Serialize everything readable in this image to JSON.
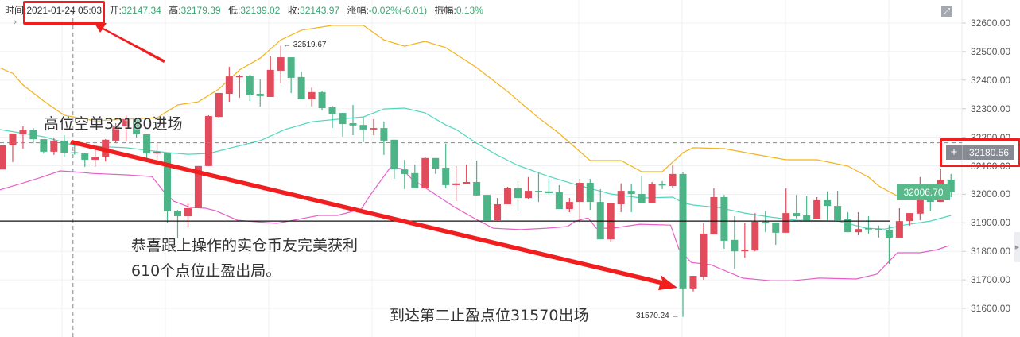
{
  "info_bar": {
    "time_label": "时间:",
    "time": "2021-01-24 05:03",
    "open_label": "开:",
    "open": "32147.34",
    "high_label": "高:",
    "high": "32179.39",
    "low_label": "低:",
    "low": "32139.02",
    "close_label": "收:",
    "close": "32143.97",
    "change_label": "涨幅:",
    "change": "-0.02%(-6.01)",
    "amplitude_label": "振幅:",
    "amplitude": "0.13%"
  },
  "annotations": {
    "entry": "高位空单32180进场",
    "profit_line1": "恭喜跟上操作的实仓币友完美获利",
    "profit_line2": "610个点位止盈出局。",
    "exit": "到达第二止盈点位31570出场"
  },
  "markers": {
    "high": "← 32519.67",
    "low": "31570.24 →"
  },
  "price_labels": {
    "crosshair": "32180.56",
    "last": "32006.70"
  },
  "colors": {
    "up": "#e24b5b",
    "down": "#4db487",
    "boll_upper": "#f5b21b",
    "boll_mid": "#4fd8be",
    "boll_lower": "#e85fc8",
    "highlight": "#f01e1e"
  },
  "icons": {
    "expand": "expand-icon",
    "chevron": "chevron-right-icon",
    "plus": "plus-icon"
  },
  "chart_data": {
    "type": "candlestick",
    "y_ticks": [
      "32600.00",
      "32500.00",
      "32400.00",
      "32300.00",
      "32200.00",
      "32100.00",
      "32000.00",
      "31900.00",
      "31800.00",
      "31700.00",
      "31600.00"
    ],
    "ylim": [
      31560,
      32600
    ],
    "grid": true,
    "candle_format": [
      "open",
      "high",
      "low",
      "close"
    ],
    "candles": [
      [
        32087,
        32171,
        32087,
        32171
      ],
      [
        32171,
        32213,
        32113,
        32213
      ],
      [
        32210,
        32238,
        32160,
        32224
      ],
      [
        32224,
        32232,
        32179,
        32193
      ],
      [
        32193,
        32193,
        32143,
        32149
      ],
      [
        32149,
        32199,
        32138,
        32188
      ],
      [
        32188,
        32207,
        32132,
        32146
      ],
      [
        32147.34,
        32179.39,
        32139.02,
        32143.97
      ],
      [
        32143,
        32146,
        32096,
        32121
      ],
      [
        32121,
        32160,
        32096,
        32132
      ],
      [
        32132,
        32193,
        32115,
        32191
      ],
      [
        32188,
        32249,
        32179,
        32238
      ],
      [
        32238,
        32277,
        32185,
        32263
      ],
      [
        32263,
        32263,
        32199,
        32210
      ],
      [
        32210,
        32210,
        32124,
        32143
      ],
      [
        32143,
        32179,
        32107,
        32149
      ],
      [
        32146,
        32146,
        31901,
        31940
      ],
      [
        31942,
        31945,
        31845,
        31923
      ],
      [
        31923,
        31968,
        31887,
        31951
      ],
      [
        31951,
        32099,
        31951,
        32099
      ],
      [
        32099,
        32277,
        32099,
        32274
      ],
      [
        32271,
        32355,
        32266,
        32355
      ],
      [
        32352,
        32447,
        32324,
        32413
      ],
      [
        32410,
        32419,
        32338,
        32416
      ],
      [
        32416,
        32419,
        32327,
        32349
      ],
      [
        32352,
        32402,
        32308,
        32344
      ],
      [
        32341,
        32483,
        32341,
        32436
      ],
      [
        32433,
        32519.67,
        32388,
        32480
      ],
      [
        32480,
        32480,
        32355,
        32408
      ],
      [
        32411,
        32430,
        32333,
        32333
      ],
      [
        32333,
        32374,
        32308,
        32358
      ],
      [
        32358,
        32363,
        32294,
        32302
      ],
      [
        32305,
        32310,
        32232,
        32282
      ],
      [
        32285,
        32285,
        32202,
        32246
      ],
      [
        32249,
        32313,
        32207,
        32241
      ],
      [
        32243,
        32271,
        32182,
        32227
      ],
      [
        32227,
        32263,
        32207,
        32232
      ],
      [
        32232,
        32255,
        32138,
        32188
      ],
      [
        32191,
        32191,
        32054,
        32087
      ],
      [
        32087,
        32121,
        32018,
        32071
      ],
      [
        32074,
        32104,
        32021,
        32021
      ],
      [
        32021,
        32129,
        32021,
        32127
      ],
      [
        32127,
        32127,
        32071,
        32090
      ],
      [
        32093,
        32177,
        32021,
        32032
      ],
      [
        32032,
        32099,
        31976,
        32038
      ],
      [
        32035,
        32104,
        32035,
        32043
      ],
      [
        32043,
        32118,
        31996,
        31996
      ],
      [
        31998,
        31998,
        31909,
        31909
      ],
      [
        31909,
        31987,
        31909,
        31965
      ],
      [
        31965,
        32026,
        31965,
        32021
      ],
      [
        32021,
        32046,
        31940,
        31987
      ],
      [
        31987,
        32060,
        31982,
        32012
      ],
      [
        32012,
        32074,
        31973,
        32007
      ],
      [
        32010,
        32054,
        31998,
        32004
      ],
      [
        32007,
        32032,
        31948,
        31948
      ],
      [
        31948,
        31987,
        31937,
        31973
      ],
      [
        31973,
        32054,
        31901,
        32040
      ],
      [
        32040,
        32054,
        31945,
        31973
      ],
      [
        31973,
        32018,
        31842,
        31842
      ],
      [
        31842,
        31968,
        31834,
        31968
      ],
      [
        31965,
        32038,
        31937,
        32012
      ],
      [
        32012,
        32035,
        31937,
        32001
      ],
      [
        32001,
        32065,
        31968,
        31968
      ],
      [
        31968,
        32043,
        31968,
        32035
      ],
      [
        32035,
        32046,
        32018,
        32032
      ],
      [
        32029,
        32101,
        32021,
        32071
      ],
      [
        32071,
        32079,
        31570.24,
        31670
      ],
      [
        31670,
        31714,
        31659,
        31714
      ],
      [
        31711,
        31898,
        31700,
        31862
      ],
      [
        31859,
        32021,
        31859,
        31990
      ],
      [
        31990,
        31998,
        31809,
        31837
      ],
      [
        31840,
        31923,
        31739,
        31800
      ],
      [
        31800,
        31898,
        31778,
        31806
      ],
      [
        31803,
        31934,
        31800,
        31904
      ],
      [
        31904,
        31942,
        31867,
        31898
      ],
      [
        31901,
        31901,
        31823,
        31865
      ],
      [
        31865,
        32021,
        31865,
        31934
      ],
      [
        31934,
        31998,
        31915,
        31923
      ],
      [
        31926,
        31993,
        31906,
        31909
      ],
      [
        31912,
        31990,
        31912,
        31979
      ],
      [
        31979,
        32010,
        31909,
        31959
      ],
      [
        31959,
        32012,
        31909,
        31909
      ],
      [
        31912,
        31937,
        31867,
        31867
      ],
      [
        31867,
        31937,
        31856,
        31878
      ],
      [
        31881,
        31923,
        31862,
        31878
      ],
      [
        31878,
        31890,
        31848,
        31876
      ],
      [
        31876,
        31892,
        31756,
        31848
      ],
      [
        31848,
        31951,
        31848,
        31906
      ],
      [
        31906,
        31934,
        31890,
        31934
      ],
      [
        31932,
        32060,
        31909,
        32004
      ],
      [
        32004,
        32015,
        31942,
        31973
      ],
      [
        31973,
        32088,
        31973,
        32051
      ],
      [
        32051,
        32071,
        31990,
        32006.7
      ]
    ],
    "selected_candle_index": 7,
    "boll_upper": [
      [
        -0.3,
        32444
      ],
      [
        1,
        32424
      ],
      [
        2,
        32383
      ],
      [
        4,
        32327
      ],
      [
        6,
        32277
      ],
      [
        9,
        32257
      ],
      [
        12,
        32263
      ],
      [
        15,
        32268
      ],
      [
        17,
        32313
      ],
      [
        19,
        32324
      ],
      [
        21,
        32369
      ],
      [
        23,
        32436
      ],
      [
        25,
        32477
      ],
      [
        27,
        32541
      ],
      [
        29,
        32575
      ],
      [
        32,
        32592
      ],
      [
        35,
        32592
      ],
      [
        37,
        32541
      ],
      [
        39,
        32519
      ],
      [
        41,
        32536
      ],
      [
        43,
        32514
      ],
      [
        46,
        32444
      ],
      [
        49,
        32360
      ],
      [
        52,
        32268
      ],
      [
        54,
        32213
      ],
      [
        57,
        32118
      ],
      [
        60,
        32118
      ],
      [
        62,
        32079
      ],
      [
        64,
        32079
      ],
      [
        66,
        32146
      ],
      [
        67,
        32163
      ],
      [
        70,
        32160
      ],
      [
        73,
        32140
      ],
      [
        76,
        32121
      ],
      [
        79,
        32121
      ],
      [
        82,
        32099
      ],
      [
        84,
        32060
      ],
      [
        85,
        32029
      ],
      [
        87,
        31990
      ],
      [
        89,
        31998
      ],
      [
        91,
        32026
      ],
      [
        92,
        32032
      ]
    ],
    "boll_mid": [
      [
        -0.3,
        32227
      ],
      [
        4,
        32202
      ],
      [
        7,
        32171
      ],
      [
        12,
        32163
      ],
      [
        16,
        32146
      ],
      [
        18,
        32140
      ],
      [
        20,
        32143
      ],
      [
        25,
        32188
      ],
      [
        27.4,
        32227
      ],
      [
        30,
        32254
      ],
      [
        32.5,
        32263
      ],
      [
        35,
        32271
      ],
      [
        37,
        32299
      ],
      [
        39,
        32302
      ],
      [
        41,
        32285
      ],
      [
        43,
        32243
      ],
      [
        44,
        32227
      ],
      [
        46,
        32179
      ],
      [
        48,
        32137
      ],
      [
        50,
        32101
      ],
      [
        53,
        32062
      ],
      [
        55.6,
        32034
      ],
      [
        59,
        32001
      ],
      [
        62,
        31987
      ],
      [
        65,
        31990
      ],
      [
        66,
        31970
      ],
      [
        67,
        31962
      ],
      [
        69.5,
        31953
      ],
      [
        72,
        31934
      ],
      [
        74.5,
        31920
      ],
      [
        77,
        31909
      ],
      [
        81,
        31906
      ],
      [
        83.8,
        31881
      ],
      [
        85.6,
        31878
      ],
      [
        87.4,
        31892
      ],
      [
        90,
        31906
      ],
      [
        92,
        31926
      ]
    ],
    "boll_lower": [
      [
        -0.3,
        32015
      ],
      [
        1.8,
        32037
      ],
      [
        3.8,
        32060
      ],
      [
        5.6,
        32082
      ],
      [
        6.8,
        32079
      ],
      [
        8.7,
        32073
      ],
      [
        12,
        32068
      ],
      [
        14.5,
        32062
      ],
      [
        15.6,
        32012
      ],
      [
        16.6,
        31976
      ],
      [
        18.2,
        31954
      ],
      [
        19.7,
        31951
      ],
      [
        20.7,
        31942
      ],
      [
        22.8,
        31909
      ],
      [
        26.6,
        31898
      ],
      [
        28.2,
        31909
      ],
      [
        30.7,
        31926
      ],
      [
        32.5,
        31926
      ],
      [
        34.8,
        31948
      ],
      [
        35.6,
        31993
      ],
      [
        37.6,
        32093
      ],
      [
        38.7,
        32090
      ],
      [
        39.7,
        32054
      ],
      [
        41.2,
        32018
      ],
      [
        43.8,
        31956
      ],
      [
        45.8,
        31915
      ],
      [
        47.6,
        31881
      ],
      [
        50.2,
        31876
      ],
      [
        52.8,
        31881
      ],
      [
        54.8,
        31887
      ],
      [
        55.6,
        31906
      ],
      [
        56.8,
        31917
      ],
      [
        57.6,
        31881
      ],
      [
        59.2,
        31881
      ],
      [
        61.8,
        31895
      ],
      [
        64.8,
        31892
      ],
      [
        65.6,
        31809
      ],
      [
        66.8,
        31761
      ],
      [
        68.7,
        31753
      ],
      [
        71.8,
        31706
      ],
      [
        74.5,
        31697
      ],
      [
        76.6,
        31697
      ],
      [
        79.2,
        31706
      ],
      [
        82.8,
        31703
      ],
      [
        84.8,
        31720
      ],
      [
        86.8,
        31795
      ],
      [
        89,
        31795
      ],
      [
        90.7,
        31806
      ],
      [
        91.8,
        31820
      ]
    ],
    "crosshair_price": 32180.56,
    "support_line_price": 31906
  }
}
